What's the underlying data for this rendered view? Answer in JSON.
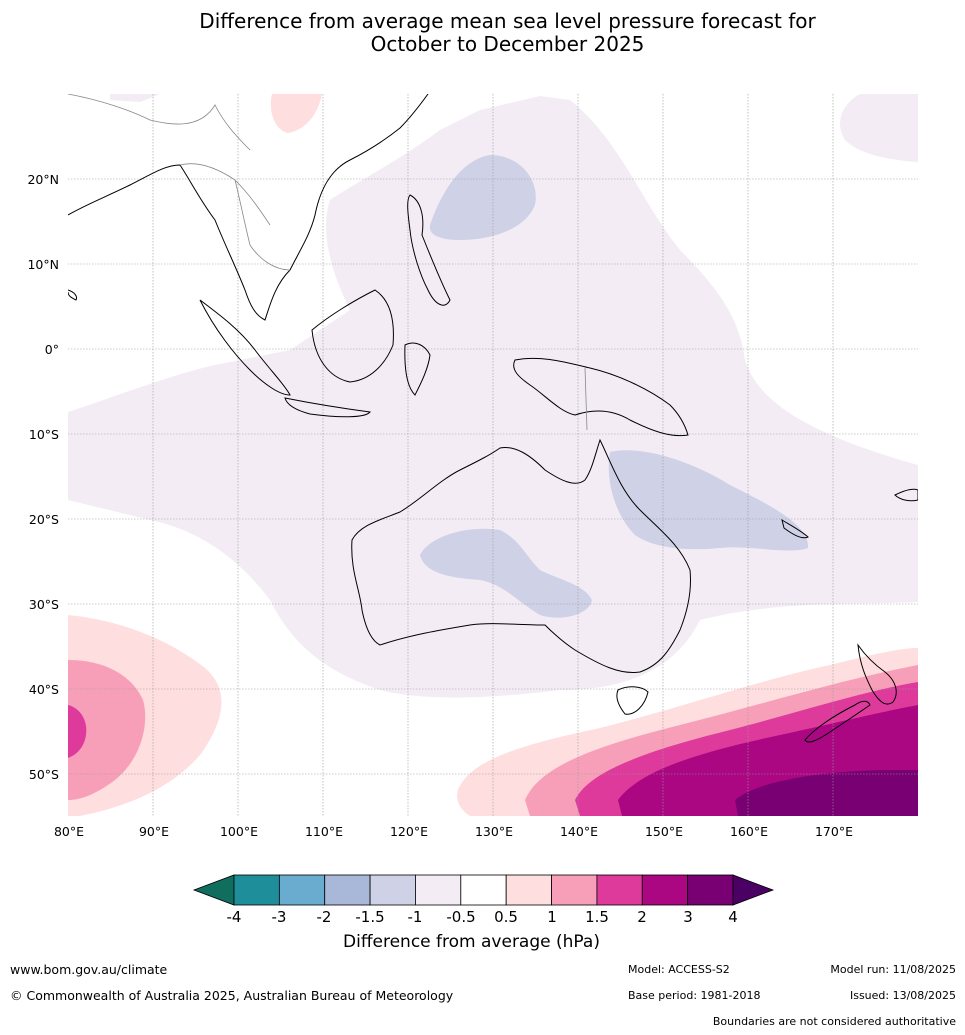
{
  "title": {
    "line1": "Difference from average mean sea level pressure forecast for",
    "line2": "October to December 2025"
  },
  "map": {
    "lat_labels": [
      "20°N",
      "10°N",
      "0°",
      "10°S",
      "20°S",
      "30°S",
      "40°S",
      "50°S"
    ],
    "lon_labels": [
      "80°E",
      "90°E",
      "100°E",
      "110°E",
      "120°E",
      "130°E",
      "140°E",
      "150°E",
      "160°E",
      "170°E"
    ]
  },
  "colorbar": {
    "label": "Difference from average (hPa)",
    "ticks": [
      "-4",
      "-3",
      "-2",
      "-1.5",
      "-1",
      "-0.5",
      "0.5",
      "1",
      "1.5",
      "2",
      "3",
      "4"
    ],
    "colors": [
      "#0f6e5e",
      "#1e8f9a",
      "#6aabd0",
      "#a9b8d8",
      "#cfd2e6",
      "#f3ecf5",
      "#ffffff",
      "#fedede",
      "#f79fb8",
      "#dd3a9c",
      "#ab0782",
      "#790073",
      "#4b0063"
    ]
  },
  "footer": {
    "website": "www.bom.gov.au/climate",
    "copyright": "© Commonwealth of Australia 2025, Australian Bureau of Meteorology",
    "model": "Model: ACCESS-S2",
    "base_period": "Base period: 1981-2018",
    "model_run": "Model run: 11/08/2025",
    "issued": "Issued: 13/08/2025",
    "disclaimer": "Boundaries are not considered authoritative"
  }
}
